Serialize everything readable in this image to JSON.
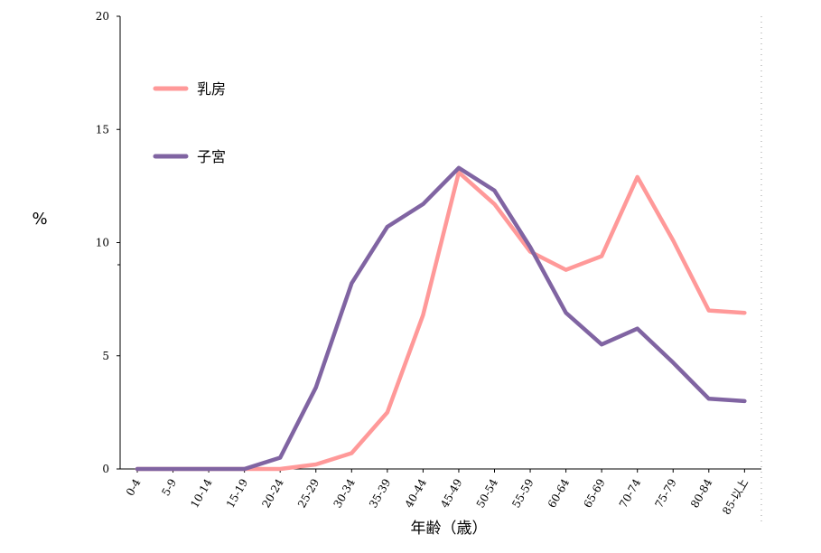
{
  "chart_data": {
    "type": "line",
    "categories": [
      "0-4",
      "5-9",
      "10-14",
      "15-19",
      "20-24",
      "25-29",
      "30-34",
      "35-39",
      "40-44",
      "45-49",
      "50-54",
      "55-59",
      "60-64",
      "65-69",
      "70-74",
      "75-79",
      "80-84",
      "85-以上"
    ],
    "series": [
      {
        "name": "乳房",
        "color": "#ff9999",
        "values": [
          0,
          0,
          0,
          0,
          0,
          0.2,
          0.7,
          2.5,
          6.8,
          13.1,
          11.7,
          9.6,
          8.8,
          9.4,
          12.9,
          10.1,
          7.0,
          6.9
        ]
      },
      {
        "name": "子宮",
        "color": "#8064a2",
        "values": [
          0,
          0,
          0,
          0,
          0.5,
          3.6,
          8.2,
          10.7,
          11.7,
          13.3,
          12.3,
          9.8,
          6.9,
          5.5,
          6.2,
          4.7,
          3.1,
          3.0
        ]
      }
    ],
    "yticks": [
      "0",
      "5",
      "10",
      "15",
      "20"
    ],
    "ylim": [
      0,
      20
    ],
    "ylabel": "%",
    "xlabel": "年齢（歳）",
    "legend_position": "top-left"
  }
}
